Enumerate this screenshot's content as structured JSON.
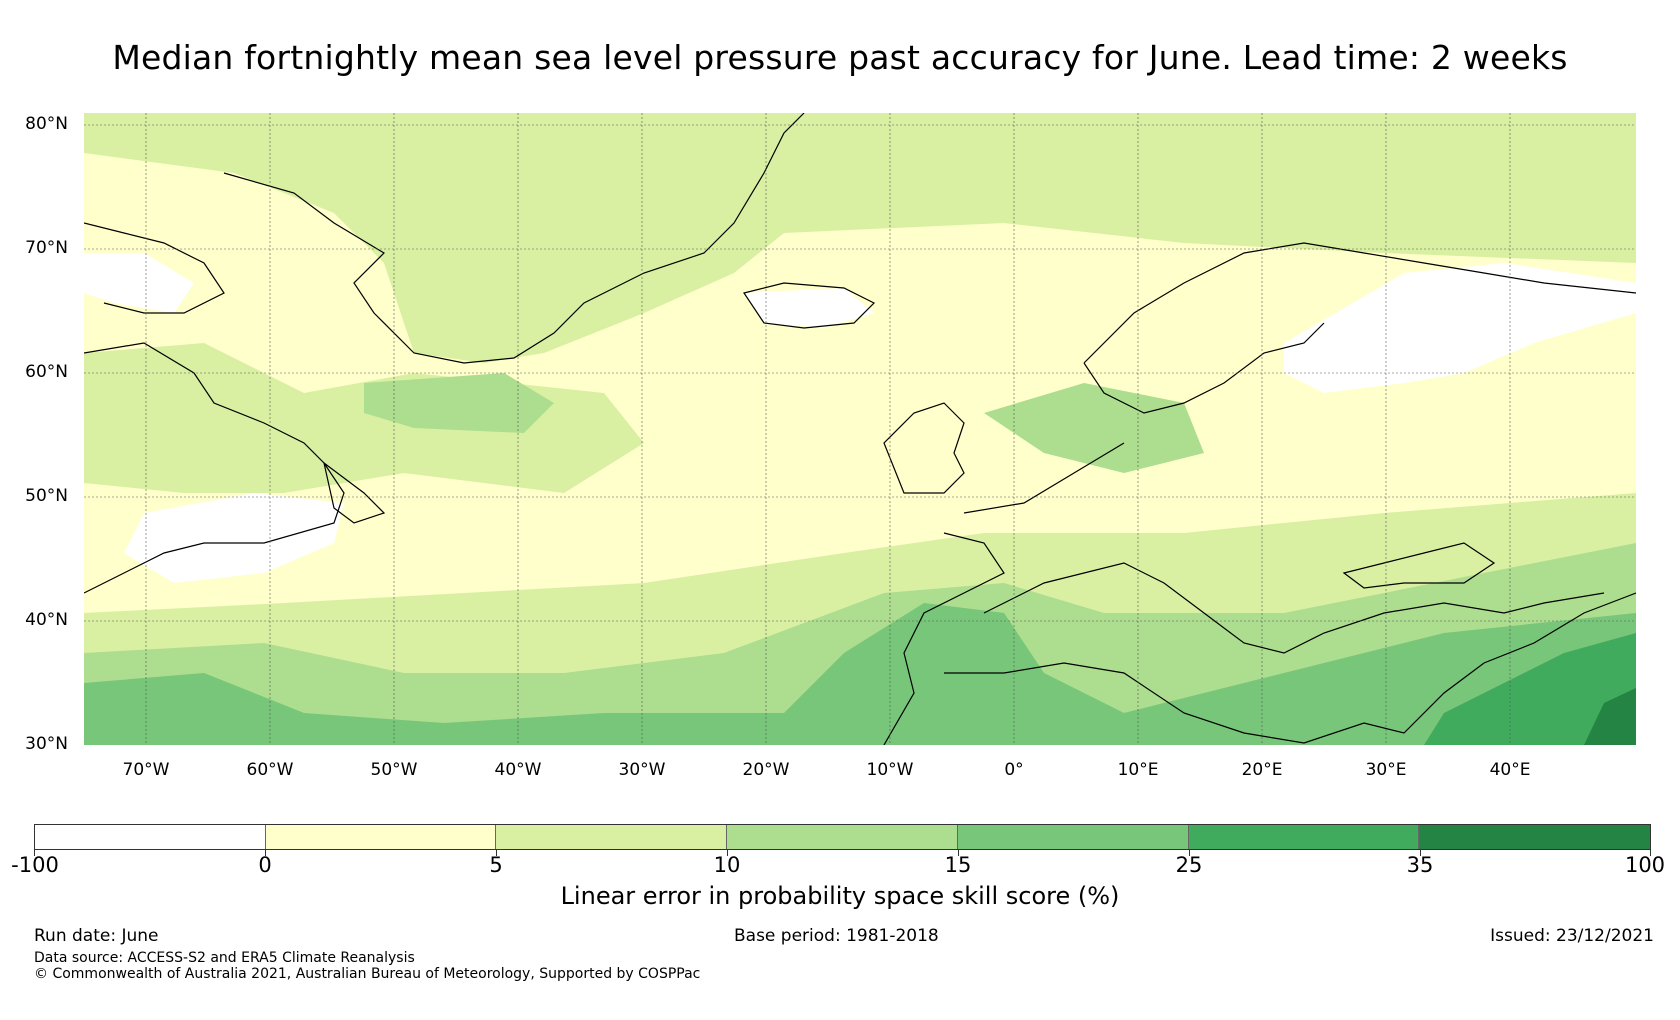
{
  "title": "Median fortnightly mean sea level pressure past accuracy for June. Lead time: 2 weeks",
  "map": {
    "lat_labels": [
      "80°N",
      "70°N",
      "60°N",
      "50°N",
      "40°N",
      "30°N"
    ],
    "lon_labels": [
      "70°W",
      "60°W",
      "50°W",
      "40°W",
      "30°W",
      "20°W",
      "10°W",
      "0°",
      "10°E",
      "20°E",
      "30°E",
      "40°E"
    ]
  },
  "colorbar": {
    "tick_labels": [
      "-100",
      "0",
      "5",
      "10",
      "15",
      "25",
      "35",
      "100"
    ],
    "colors": [
      "#ffffff",
      "#ffffcc",
      "#d9f0a3",
      "#addd8e",
      "#78c679",
      "#41ab5d",
      "#238443"
    ],
    "label": "Linear error in probability space skill score (%)"
  },
  "footer": {
    "run_date": "Run date: June",
    "base_period": "Base period: 1981-2018",
    "issued": "Issued: 23/12/2021",
    "data_source": "Data source: ACCESS-S2 and ERA5 Climate Reanalysis",
    "copyright": "© Commonwealth of Australia 2021, Australian Bureau of Meteorology, Supported by COSPPac"
  }
}
